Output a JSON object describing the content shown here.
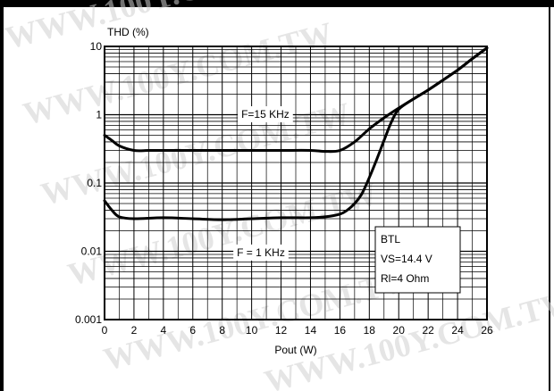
{
  "chart_data": {
    "type": "line",
    "xlabel": "Pout (W)",
    "ylabel": "THD (%)",
    "xlim": [
      0,
      26
    ],
    "ylim": [
      0.001,
      10
    ],
    "yscale": "log",
    "grid": true,
    "x_ticks": [
      0,
      2,
      4,
      6,
      8,
      10,
      12,
      14,
      16,
      18,
      20,
      22,
      24,
      26
    ],
    "y_ticks": [
      0.001,
      0.01,
      0.1,
      1,
      10
    ],
    "x_tick_labels": [
      "0",
      "2",
      "4",
      "6",
      "8",
      "10",
      "12",
      "14",
      "16",
      "18",
      "20",
      "22",
      "24",
      "26"
    ],
    "y_tick_labels": [
      "0.001",
      "0.01",
      "0.1",
      "1",
      "10"
    ],
    "series": [
      {
        "name": "F=15 KHz",
        "x": [
          0,
          0.5,
          1,
          2,
          3,
          4,
          6,
          8,
          10,
          12,
          14,
          15,
          16,
          17,
          18,
          19,
          20,
          21,
          22,
          23,
          24,
          25,
          26
        ],
        "y": [
          0.5,
          0.42,
          0.35,
          0.3,
          0.3,
          0.3,
          0.3,
          0.3,
          0.3,
          0.3,
          0.3,
          0.29,
          0.3,
          0.4,
          0.62,
          0.9,
          1.25,
          1.7,
          2.3,
          3.2,
          4.5,
          6.6,
          9.5
        ]
      },
      {
        "name": "F = 1 KHz",
        "x": [
          0,
          0.5,
          1,
          2,
          4,
          6,
          8,
          10,
          12,
          14,
          15,
          16,
          16.5,
          17,
          17.5,
          18,
          18.5,
          19,
          19.5,
          20,
          21,
          22,
          23,
          24,
          25,
          26
        ],
        "y": [
          0.055,
          0.04,
          0.032,
          0.03,
          0.031,
          0.03,
          0.029,
          0.03,
          0.031,
          0.031,
          0.032,
          0.035,
          0.04,
          0.05,
          0.07,
          0.12,
          0.22,
          0.42,
          0.78,
          1.2,
          1.7,
          2.3,
          3.2,
          4.5,
          6.6,
          9.5
        ]
      }
    ],
    "annotation_box": [
      "BTL",
      "VS=14.4 V",
      "Rl=4 Ohm"
    ]
  },
  "watermark": [
    "WWW.100Y.COM.TW",
    "WWW.100Y.COM.TW",
    "WWW.100Y.COM.TW",
    "WWW.100Y.COM.TW",
    "WWW.100Y.COM.TW",
    "WWW.100Y.COM.TW"
  ]
}
